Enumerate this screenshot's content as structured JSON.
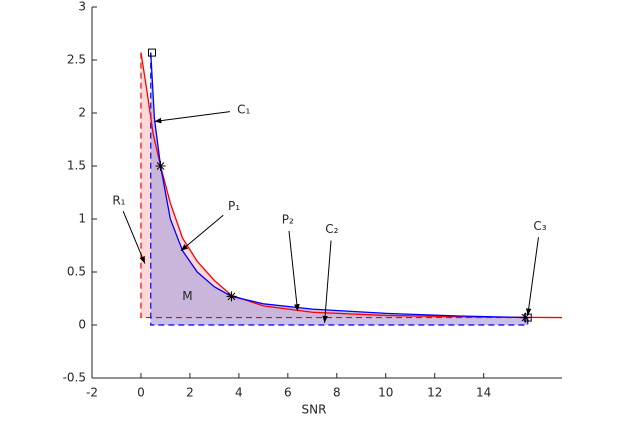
{
  "chart_data": {
    "type": "line",
    "xlabel": "SNR",
    "xlim": [
      -2,
      17.2
    ],
    "ylim": [
      -0.5,
      3
    ],
    "xticks": [
      -2,
      0,
      2,
      4,
      6,
      8,
      10,
      12,
      14
    ],
    "yticks": [
      -0.5,
      0,
      0.5,
      1,
      1.5,
      2,
      2.5,
      3
    ],
    "series": [
      {
        "color": "#ff0000",
        "fill_color": "#ffc8c8",
        "baseline": 0.07,
        "x": [
          0,
          0.25,
          0.5,
          0.8,
          1.2,
          1.7,
          2.3,
          3,
          3.7,
          5,
          7,
          10,
          14,
          17.2
        ],
        "values": [
          2.57,
          2.2,
          1.8,
          1.5,
          1.15,
          0.82,
          0.6,
          0.42,
          0.28,
          0.18,
          0.12,
          0.09,
          0.075,
          0.07
        ]
      },
      {
        "color": "#0000ff",
        "fill_color": "#b4a8dc",
        "baseline": 0,
        "x": [
          0.4,
          0.55,
          0.8,
          1.2,
          1.7,
          2.3,
          3,
          3.7,
          5,
          7,
          10,
          13,
          15.8
        ],
        "values": [
          2.57,
          1.95,
          1.5,
          1.0,
          0.7,
          0.5,
          0.36,
          0.27,
          0.2,
          0.15,
          0.11,
          0.085,
          0.07
        ]
      }
    ],
    "dashed_lines": [
      {
        "color": "#ff0000",
        "x": [
          0,
          0,
          15.8
        ],
        "values": [
          2.57,
          0.07,
          0.07
        ]
      },
      {
        "color": "#0000ff",
        "x": [
          0.4,
          0.4,
          15.8,
          15.8
        ],
        "values": [
          2.57,
          0,
          0,
          0.07
        ]
      }
    ],
    "markers": [
      {
        "shape": "square",
        "x": 0.45,
        "y": 2.57
      },
      {
        "shape": "square",
        "x": 15.8,
        "y": 0.07
      },
      {
        "shape": "asterisk",
        "x": 0.8,
        "y": 1.5
      },
      {
        "shape": "asterisk",
        "x": 3.7,
        "y": 0.27
      },
      {
        "shape": "asterisk",
        "x": 15.7,
        "y": 0.07
      }
    ],
    "annotations": [
      "C₁",
      "P₁",
      "R₁",
      "P₂",
      "C₂",
      "C₃",
      "M"
    ]
  }
}
